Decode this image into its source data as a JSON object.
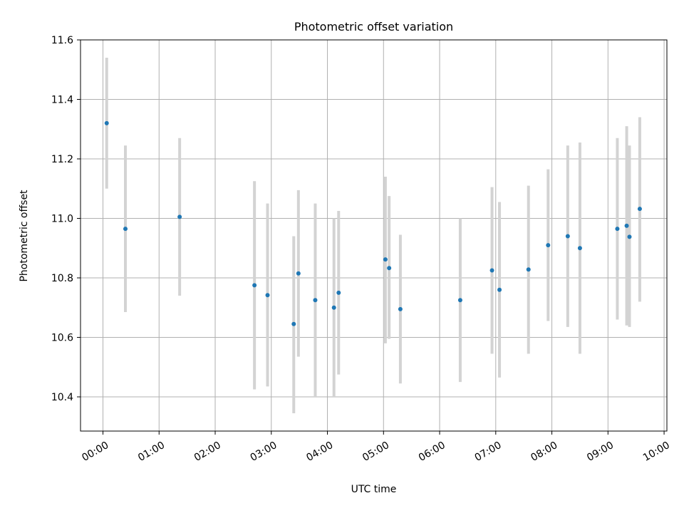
{
  "chart_data": {
    "type": "scatter",
    "title": "Photometric offset variation",
    "xlabel": "UTC time",
    "ylabel": "Photometric offset",
    "xlim_hours": [
      -0.4,
      10.05
    ],
    "ylim": [
      10.285,
      11.6
    ],
    "grid": true,
    "legend": "none",
    "x_ticks": [
      "00:00",
      "01:00",
      "02:00",
      "03:00",
      "04:00",
      "05:00",
      "06:00",
      "07:00",
      "08:00",
      "09:00",
      "10:00"
    ],
    "y_ticks": [
      "10.4",
      "10.6",
      "10.8",
      "11.0",
      "11.2",
      "11.4",
      "11.6"
    ],
    "colors": {
      "point": "#1f77b4",
      "errorbar": "#d3d3d3",
      "grid": "#b0b0b0"
    },
    "points": [
      {
        "x": "00:04",
        "y": 11.32,
        "ylow": 11.1,
        "yhigh": 11.54
      },
      {
        "x": "00:24",
        "y": 10.965,
        "ylow": 10.685,
        "yhigh": 11.245
      },
      {
        "x": "01:22",
        "y": 11.005,
        "ylow": 10.74,
        "yhigh": 11.27
      },
      {
        "x": "02:42",
        "y": 10.775,
        "ylow": 10.425,
        "yhigh": 11.125
      },
      {
        "x": "02:56",
        "y": 10.742,
        "ylow": 10.435,
        "yhigh": 11.05
      },
      {
        "x": "03:24",
        "y": 10.645,
        "ylow": 10.345,
        "yhigh": 10.94
      },
      {
        "x": "03:29",
        "y": 10.815,
        "ylow": 10.535,
        "yhigh": 11.095
      },
      {
        "x": "03:47",
        "y": 10.725,
        "ylow": 10.4,
        "yhigh": 11.05
      },
      {
        "x": "04:07",
        "y": 10.7,
        "ylow": 10.4,
        "yhigh": 11.0
      },
      {
        "x": "04:12",
        "y": 10.75,
        "ylow": 10.475,
        "yhigh": 11.025
      },
      {
        "x": "05:02",
        "y": 10.862,
        "ylow": 10.58,
        "yhigh": 11.14
      },
      {
        "x": "05:06",
        "y": 10.833,
        "ylow": 10.595,
        "yhigh": 11.075
      },
      {
        "x": "05:18",
        "y": 10.695,
        "ylow": 10.445,
        "yhigh": 10.945
      },
      {
        "x": "06:22",
        "y": 10.725,
        "ylow": 10.45,
        "yhigh": 11.0
      },
      {
        "x": "06:56",
        "y": 10.825,
        "ylow": 10.545,
        "yhigh": 11.105
      },
      {
        "x": "07:04",
        "y": 10.76,
        "ylow": 10.465,
        "yhigh": 11.055
      },
      {
        "x": "07:35",
        "y": 10.828,
        "ylow": 10.545,
        "yhigh": 11.11
      },
      {
        "x": "07:56",
        "y": 10.91,
        "ylow": 10.655,
        "yhigh": 11.165
      },
      {
        "x": "08:17",
        "y": 10.94,
        "ylow": 10.635,
        "yhigh": 11.245
      },
      {
        "x": "08:30",
        "y": 10.9,
        "ylow": 10.545,
        "yhigh": 11.255
      },
      {
        "x": "09:10",
        "y": 10.965,
        "ylow": 10.66,
        "yhigh": 11.27
      },
      {
        "x": "09:20",
        "y": 10.975,
        "ylow": 10.64,
        "yhigh": 11.31
      },
      {
        "x": "09:23",
        "y": 10.938,
        "ylow": 10.635,
        "yhigh": 11.245
      },
      {
        "x": "09:34",
        "y": 11.032,
        "ylow": 10.72,
        "yhigh": 11.34
      }
    ]
  }
}
